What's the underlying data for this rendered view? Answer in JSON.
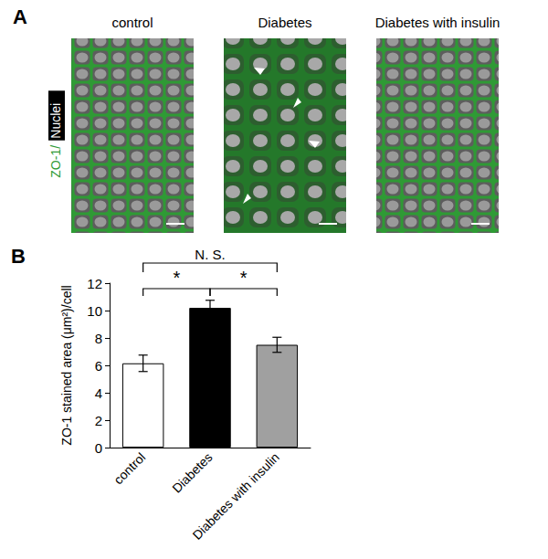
{
  "panel_a": {
    "letter": "A",
    "stain_label": "ZO-1/Nuclei",
    "image_titles": [
      "control",
      "Diabetes",
      "Diabetes with insulin"
    ]
  },
  "chart_data": {
    "type": "bar",
    "panel_letter": "B",
    "y_label": "ZO-1 stained area (μm²)/cell",
    "categories": [
      "control",
      "Diabetes",
      "Diabetes with insulin"
    ],
    "values": [
      6.15,
      10.2,
      7.5
    ],
    "errors": [
      0.6,
      0.55,
      0.55
    ],
    "colors": [
      "#ffffff",
      "#000000",
      "#a0a0a0"
    ],
    "ylim": [
      0,
      12
    ],
    "yticks": [
      0,
      2,
      4,
      6,
      8,
      10,
      12
    ],
    "grid": false,
    "annotations": [
      {
        "text": "*",
        "from": 0,
        "to": 1
      },
      {
        "text": "*",
        "from": 1,
        "to": 2
      },
      {
        "text": "N. S.",
        "from": 0,
        "to": 2
      }
    ]
  }
}
